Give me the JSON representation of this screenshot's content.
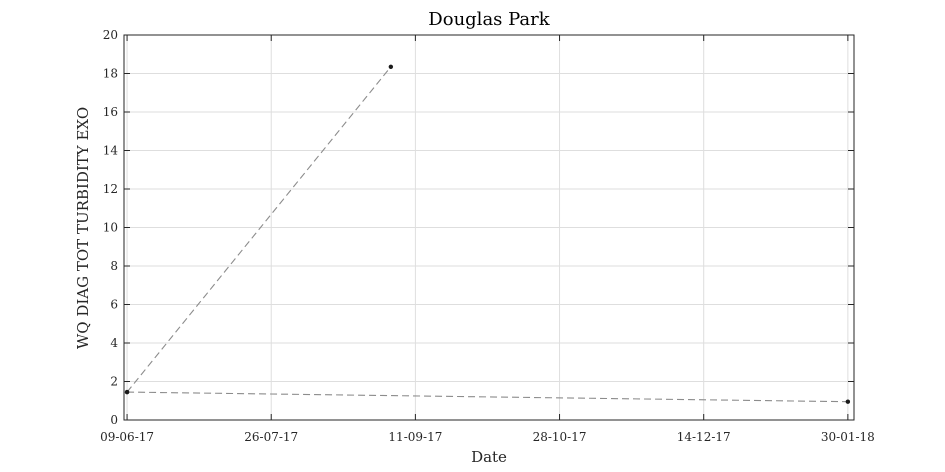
{
  "chart_data": {
    "type": "line",
    "title": "Douglas Park",
    "xlabel": "Date",
    "ylabel": "WQ DIAG TOT TURBIDITY EXO",
    "x_axis_type": "date",
    "x_ticks": [
      "09-06-17",
      "26-07-17",
      "11-09-17",
      "28-10-17",
      "14-12-17",
      "30-01-18"
    ],
    "xlim": [
      "2017-06-08",
      "2018-02-01"
    ],
    "ylim": [
      0,
      20
    ],
    "y_ticks": [
      0,
      2,
      4,
      6,
      8,
      10,
      12,
      14,
      16,
      18,
      20
    ],
    "grid": true,
    "line_style": "dashed",
    "series": [
      {
        "points": [
          {
            "x": "2017-06-09",
            "y": 1.45
          },
          {
            "x": "2017-09-03",
            "y": 18.35
          }
        ]
      },
      {
        "points": [
          {
            "x": "2017-06-09",
            "y": 1.45
          },
          {
            "x": "2018-01-30",
            "y": 0.95
          }
        ]
      }
    ]
  },
  "colors": {
    "line": "#8c8c8c",
    "marker": "#1a1a1a",
    "grid": "#dedede",
    "axis": "#262626"
  }
}
